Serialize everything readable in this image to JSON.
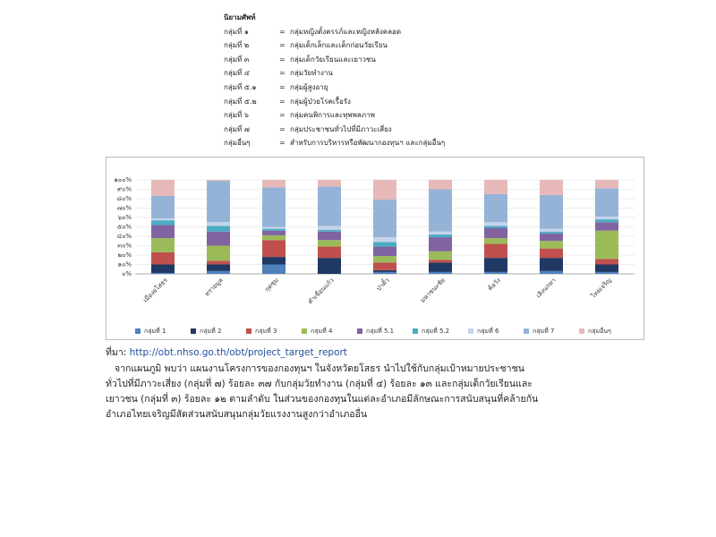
{
  "definitions": {
    "title": "นิยามศัพท์",
    "separator": "=",
    "items": [
      {
        "term": "กลุ่มที่ ๑",
        "desc": "กลุ่มหญิงตั้งครรภ์และหญิงหลังคลอด"
      },
      {
        "term": "กลุ่มที่ ๒",
        "desc": "กลุ่มเด็กเล็กและเด็กก่อนวัยเรียน"
      },
      {
        "term": "กลุ่มที่ ๓",
        "desc": "กลุ่มเด็กวัยเรียนและเยาวชน"
      },
      {
        "term": "กลุ่มที่ ๔",
        "desc": "กลุ่มวัยทำงาน"
      },
      {
        "term": "กลุ่มที่ ๕.๑",
        "desc": "กลุ่มผู้สูงอายุ"
      },
      {
        "term": "กลุ่มที่ ๕.๒",
        "desc": "กลุ่มผู้ป่วยโรคเรื้อรัง"
      },
      {
        "term": "กลุ่มที่ ๖",
        "desc": "กลุ่มคนพิการและทุพพลภาพ"
      },
      {
        "term": "กลุ่มที่ ๗",
        "desc": "กลุ่มประชาชนทั่วไปที่มีภาวะเสี่ยง"
      },
      {
        "term": "กลุ่มอื่นๆ",
        "desc": "สำหรับการบริหารหรือพัฒนากองทุนฯ และกลุ่มอื่นๆ"
      }
    ]
  },
  "chart_data": {
    "type": "stacked_bar",
    "categories": [
      "เมืองยโสธร",
      "ทรายมูล",
      "กุดชุม",
      "คำเขื่อนแก้ว",
      "ป่าติ้ว",
      "มหาชนะชัย",
      "ค้อวัง",
      "เลิงนกทา",
      "ไทยเจริญ"
    ],
    "series": [
      {
        "name": "กลุ่มที่ 1",
        "color": "#4f81bd",
        "values": [
          1,
          3,
          10,
          0,
          2,
          2,
          2,
          3,
          2
        ]
      },
      {
        "name": "กลุ่มที่ 2",
        "color": "#1f3864",
        "values": [
          9,
          7,
          8,
          17,
          2,
          10,
          15,
          14,
          8
        ]
      },
      {
        "name": "กลุ่มที่ 3",
        "color": "#c0504d",
        "values": [
          13,
          4,
          18,
          12,
          8,
          3,
          15,
          10,
          6
        ]
      },
      {
        "name": "กลุ่มที่ 4",
        "color": "#9bbb59",
        "values": [
          15,
          16,
          5,
          7,
          7,
          9,
          6,
          8,
          30
        ]
      },
      {
        "name": "กลุ่มที่ 5.1",
        "color": "#8064a2",
        "values": [
          14,
          15,
          5,
          9,
          10,
          15,
          11,
          8,
          9
        ]
      },
      {
        "name": "กลุ่มที่ 5.2",
        "color": "#4bacc6",
        "values": [
          5,
          6,
          2,
          2,
          5,
          3,
          2,
          2,
          3
        ]
      },
      {
        "name": "กลุ่มที่ 6",
        "color": "#c6d3ea",
        "values": [
          2,
          4,
          2,
          4,
          5,
          3,
          4,
          3,
          3
        ]
      },
      {
        "name": "กลุ่มที่ 7",
        "color": "#95b3d7",
        "values": [
          24,
          44,
          42,
          42,
          40,
          45,
          30,
          36,
          30
        ]
      },
      {
        "name": "กลุ่มอื่นๆ",
        "color": "#e6b9b8",
        "values": [
          17,
          1,
          8,
          7,
          21,
          10,
          15,
          16,
          9
        ]
      }
    ],
    "ylim": [
      0,
      100
    ],
    "yticks": [
      {
        "value": 0,
        "label": "๐%"
      },
      {
        "value": 10,
        "label": "๑๐%"
      },
      {
        "value": 20,
        "label": "๒๐%"
      },
      {
        "value": 30,
        "label": "๓๐%"
      },
      {
        "value": 40,
        "label": "๔๐%"
      },
      {
        "value": 50,
        "label": "๕๐%"
      },
      {
        "value": 60,
        "label": "๖๐%"
      },
      {
        "value": 70,
        "label": "๗๐%"
      },
      {
        "value": 80,
        "label": "๘๐%"
      },
      {
        "value": 90,
        "label": "๙๐%"
      },
      {
        "value": 100,
        "label": "๑๐๐%"
      }
    ],
    "grid": true,
    "legend": "bottom"
  },
  "source": {
    "label": "ที่มา:",
    "url": "http://obt.nhso.go.th/obt/project_target_report"
  },
  "paragraph": [
    "จากแผนภูมิ พบว่า แผนงานโครงการของกองทุนฯ ในจังหวัดยโสธร นำไปใช้กับกลุ่มเป้าหมายประชาชน",
    "ทั่วไปที่มีภาวะเสี่ยง (กลุ่มที่ ๗) ร้อยละ ๓๗ กับกลุ่มวัยทำงาน (กลุ่มที่ ๔) ร้อยละ ๑๓ และกลุ่มเด็กวัยเรียนและ",
    "เยาวชน (กลุ่มที่ ๓) ร้อยละ ๑๒ ตามลำดับ ในส่วนของกองทุนในแต่ละอำเภอมีลักษณะการสนับสนุนที่คล้ายกัน",
    "อำเภอไทยเจริญมีสัดส่วนสนับสนุนกลุ่มวัยแรงงานสูงกว่าอำเภออื่น"
  ]
}
